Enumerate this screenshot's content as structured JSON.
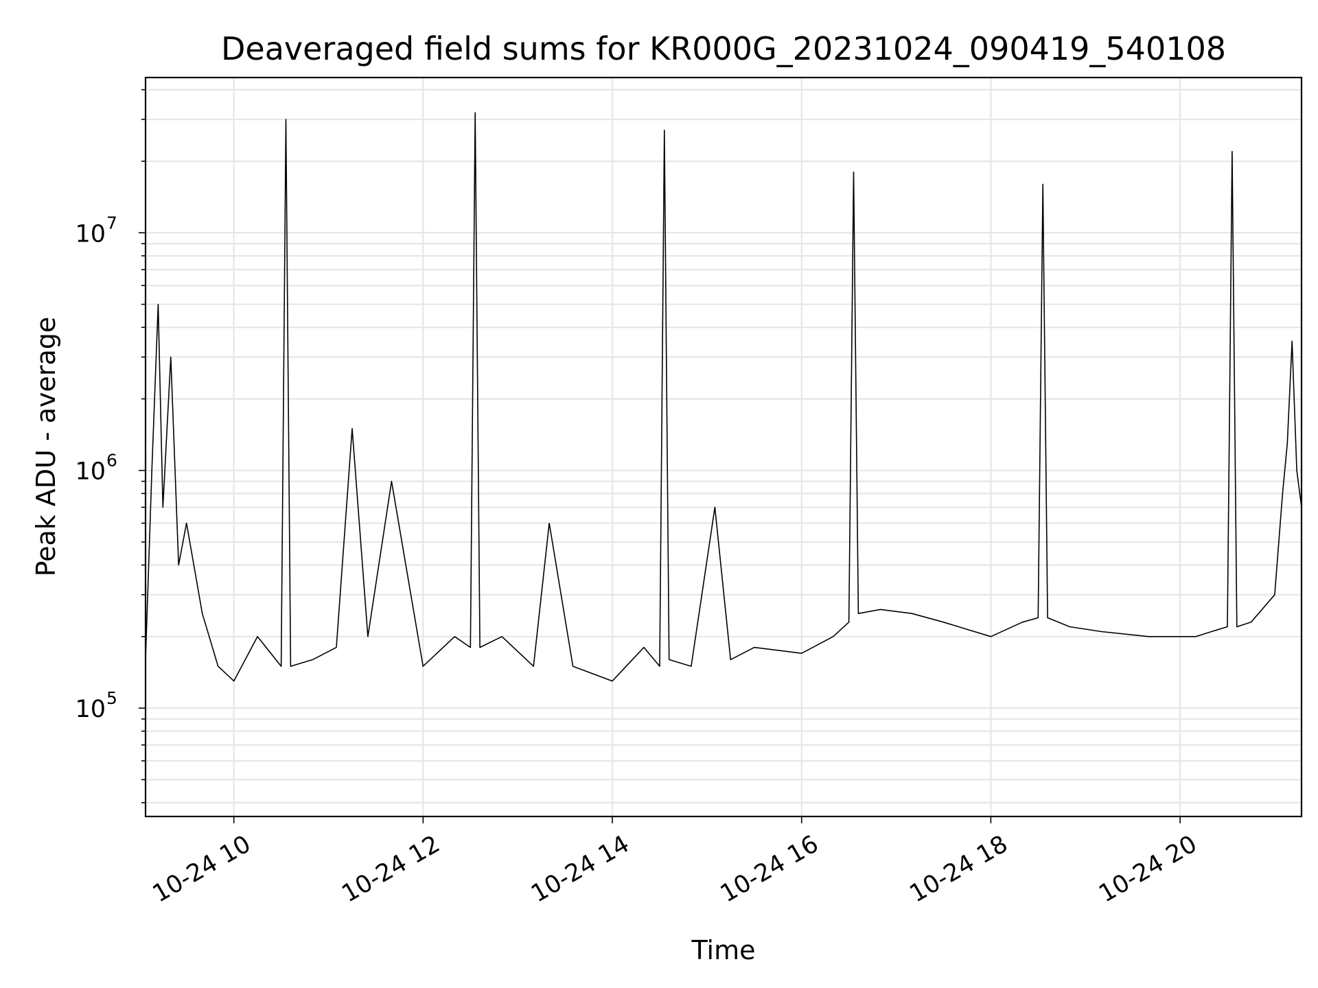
{
  "chart_data": {
    "type": "line",
    "title": "Deaveraged field sums for KR000G_20231024_090419_540108",
    "xlabel": "Time",
    "ylabel": "Peak ADU - average",
    "xscale": "time",
    "yscale": "log",
    "xlim": [
      "2023-10-24 09:04",
      "2023-10-24 21:17"
    ],
    "ylim": [
      35000,
      45000000
    ],
    "grid": true,
    "line_color": "#000000",
    "grid_color": "#e6e6e6",
    "x_tick_labels": [
      "10-24 10",
      "10-24 12",
      "10-24 14",
      "10-24 16",
      "10-24 18",
      "10-24 20"
    ],
    "y_tick_labels": [
      {
        "base": "10",
        "exp": "5"
      },
      {
        "base": "10",
        "exp": "6"
      },
      {
        "base": "10",
        "exp": "7"
      }
    ],
    "series": [
      {
        "x": [
          "2023-10-24 09:04",
          "2023-10-24 09:08",
          "2023-10-24 09:12",
          "2023-10-24 09:15",
          "2023-10-24 09:20",
          "2023-10-24 09:25",
          "2023-10-24 09:30",
          "2023-10-24 09:40",
          "2023-10-24 09:50",
          "2023-10-24 10:00",
          "2023-10-24 10:15",
          "2023-10-24 10:30",
          "2023-10-24 10:33",
          "2023-10-24 10:36",
          "2023-10-24 10:50",
          "2023-10-24 11:05",
          "2023-10-24 11:15",
          "2023-10-24 11:25",
          "2023-10-24 11:40",
          "2023-10-24 12:00",
          "2023-10-24 12:20",
          "2023-10-24 12:30",
          "2023-10-24 12:33",
          "2023-10-24 12:36",
          "2023-10-24 12:50",
          "2023-10-24 13:10",
          "2023-10-24 13:20",
          "2023-10-24 13:35",
          "2023-10-24 14:00",
          "2023-10-24 14:20",
          "2023-10-24 14:30",
          "2023-10-24 14:33",
          "2023-10-24 14:36",
          "2023-10-24 14:50",
          "2023-10-24 15:05",
          "2023-10-24 15:15",
          "2023-10-24 15:30",
          "2023-10-24 16:00",
          "2023-10-24 16:20",
          "2023-10-24 16:30",
          "2023-10-24 16:33",
          "2023-10-24 16:36",
          "2023-10-24 16:50",
          "2023-10-24 17:10",
          "2023-10-24 17:30",
          "2023-10-24 18:00",
          "2023-10-24 18:20",
          "2023-10-24 18:30",
          "2023-10-24 18:33",
          "2023-10-24 18:36",
          "2023-10-24 18:50",
          "2023-10-24 19:10",
          "2023-10-24 19:40",
          "2023-10-24 20:10",
          "2023-10-24 20:20",
          "2023-10-24 20:30",
          "2023-10-24 20:33",
          "2023-10-24 20:36",
          "2023-10-24 20:45",
          "2023-10-24 21:00",
          "2023-10-24 21:05",
          "2023-10-24 21:08",
          "2023-10-24 21:11",
          "2023-10-24 21:14",
          "2023-10-24 21:17"
        ],
        "y": [
          160000,
          1000000,
          5000000,
          700000,
          3000000,
          400000,
          600000,
          250000,
          150000,
          130000,
          200000,
          150000,
          30000000,
          150000,
          160000,
          180000,
          1500000,
          200000,
          900000,
          150000,
          200000,
          180000,
          32000000,
          180000,
          200000,
          150000,
          600000,
          150000,
          130000,
          180000,
          150000,
          27000000,
          160000,
          150000,
          700000,
          160000,
          180000,
          170000,
          200000,
          230000,
          18000000,
          250000,
          260000,
          250000,
          230000,
          200000,
          230000,
          240000,
          16000000,
          240000,
          220000,
          210000,
          200000,
          200000,
          210000,
          220000,
          22000000,
          220000,
          230000,
          300000,
          800000,
          1300000,
          3500000,
          1000000,
          700000
        ]
      }
    ]
  }
}
